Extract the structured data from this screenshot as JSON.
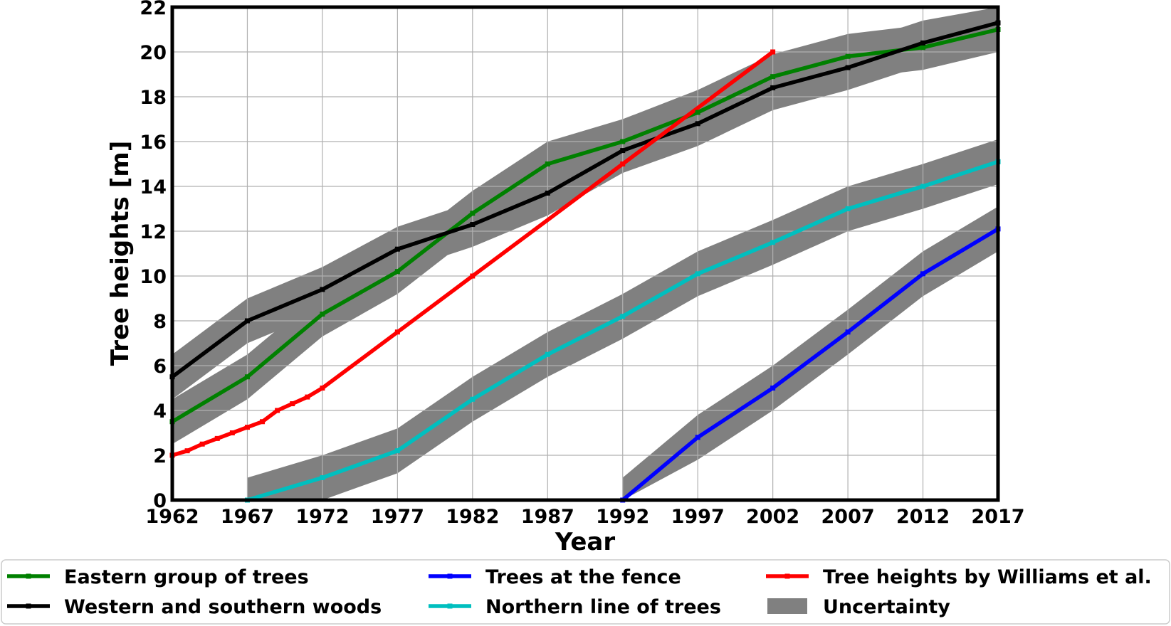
{
  "chart_data": {
    "type": "line",
    "title": "",
    "xlabel": "Year",
    "ylabel": "Tree heights [m]",
    "xlim": [
      1962,
      2017
    ],
    "ylim": [
      0,
      22
    ],
    "xticks": [
      1962,
      1967,
      1972,
      1977,
      1982,
      1987,
      1992,
      1997,
      2002,
      2007,
      2012,
      2017
    ],
    "yticks": [
      0,
      2,
      4,
      6,
      8,
      10,
      12,
      14,
      16,
      18,
      20,
      22
    ],
    "grid": true,
    "legend_position": "bottom",
    "uncertainty": 1,
    "series": [
      {
        "name": "Eastern group of trees",
        "color": "#008000",
        "x": [
          1962,
          1967,
          1972,
          1977,
          1982,
          1987,
          1992,
          1997,
          2002,
          2007,
          2012,
          2017
        ],
        "y": [
          3.5,
          5.5,
          8.3,
          10.2,
          12.8,
          15.0,
          16.0,
          17.3,
          18.9,
          19.8,
          20.2,
          21.0
        ]
      },
      {
        "name": "Western and southern woods",
        "color": "#000000",
        "x": [
          1962,
          1967,
          1972,
          1977,
          1982,
          1987,
          1992,
          1997,
          2002,
          2007,
          2012,
          2017
        ],
        "y": [
          5.5,
          8.0,
          9.4,
          11.2,
          12.3,
          13.7,
          15.6,
          16.8,
          18.4,
          19.3,
          20.4,
          21.3
        ]
      },
      {
        "name": "Trees at the fence",
        "color": "#0000ff",
        "x": [
          1992,
          1997,
          2002,
          2007,
          2012,
          2017
        ],
        "y": [
          0.0,
          2.8,
          5.0,
          7.5,
          10.1,
          12.1
        ]
      },
      {
        "name": "Northern line of trees",
        "color": "#00bfbf",
        "x": [
          1967,
          1972,
          1977,
          1982,
          1987,
          1992,
          1997,
          2002,
          2007,
          2012,
          2017
        ],
        "y": [
          0.0,
          1.0,
          2.2,
          4.5,
          6.5,
          8.2,
          10.1,
          11.5,
          13.0,
          14.0,
          15.1
        ]
      },
      {
        "name": "Tree heights by Williams et al.",
        "color": "#ff0000",
        "x": [
          1962,
          1963,
          1964,
          1965,
          1966,
          1967,
          1968,
          1969,
          1970,
          1971,
          1972,
          1977,
          1982,
          1992,
          2002
        ],
        "y": [
          2.0,
          2.2,
          2.5,
          2.75,
          3.0,
          3.25,
          3.5,
          4.0,
          4.3,
          4.6,
          5.0,
          7.5,
          10.0,
          15.0,
          20.0
        ]
      }
    ],
    "legend": [
      {
        "label": "Eastern group of trees",
        "color": "#008000",
        "kind": "line"
      },
      {
        "label": "Trees at the fence",
        "color": "#0000ff",
        "kind": "line"
      },
      {
        "label": "Tree heights by Williams et al.",
        "color": "#ff0000",
        "kind": "line"
      },
      {
        "label": "Western and southern woods",
        "color": "#000000",
        "kind": "line"
      },
      {
        "label": "Northern line of trees",
        "color": "#00bfbf",
        "kind": "line"
      },
      {
        "label": "Uncertainty",
        "color": "#808080",
        "kind": "patch"
      }
    ]
  }
}
